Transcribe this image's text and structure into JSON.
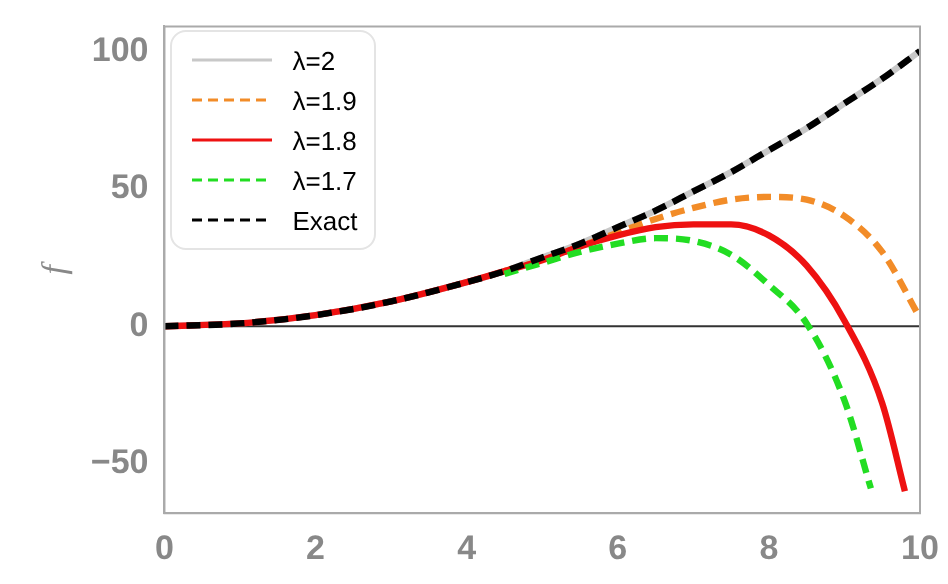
{
  "chart_data": {
    "type": "line",
    "ylabel": "f",
    "xlim": [
      0,
      10
    ],
    "ylim": [
      -68,
      109
    ],
    "xticks": [
      0,
      2,
      4,
      6,
      8,
      10
    ],
    "yticks": [
      -50,
      0,
      50,
      100
    ],
    "grid": false,
    "legend": "top left",
    "marker": "none",
    "ref_lines": [
      {
        "axis": "y",
        "value": 0,
        "color": "#333333"
      }
    ],
    "series": [
      {
        "name": "λ=2",
        "color": "#c8c8c8",
        "line_style": "solid",
        "x": [
          0,
          1,
          2,
          3,
          4,
          4.5,
          5,
          5.5,
          6,
          6.5,
          7,
          7.5,
          8,
          8.5,
          9,
          9.5,
          10
        ],
        "values": [
          0,
          1,
          4,
          9,
          16,
          20,
          25,
          30,
          36,
          42,
          49,
          56,
          64,
          72,
          81,
          90,
          100
        ]
      },
      {
        "name": "λ=1.9",
        "color": "#f28c28",
        "line_style": "dashed",
        "x": [
          4.5,
          5,
          5.5,
          6,
          6.5,
          7,
          7.5,
          8,
          8.5,
          9,
          9.5,
          10
        ],
        "values": [
          20,
          24,
          29,
          34,
          39,
          43,
          46,
          47,
          46,
          40,
          27,
          3
        ]
      },
      {
        "name": "λ=1.8",
        "color": "#ee1111",
        "line_style": "solid",
        "x": [
          0,
          1,
          2,
          3,
          4,
          4.5,
          5,
          5.5,
          6,
          6.5,
          7,
          7.5,
          8,
          8.5,
          9,
          9.5,
          9.8
        ],
        "values": [
          0,
          1,
          4,
          9,
          16,
          20,
          24,
          29,
          33,
          36,
          37,
          37,
          33,
          22,
          2,
          -28,
          -60
        ]
      },
      {
        "name": "λ=1.7",
        "color": "#22dd22",
        "line_style": "dashed",
        "x": [
          4.5,
          5,
          5.5,
          6,
          6.5,
          7,
          7.5,
          8,
          8.5,
          9,
          9.35
        ],
        "values": [
          19,
          23,
          27,
          30,
          32,
          31,
          26,
          15,
          1,
          -27,
          -59
        ]
      },
      {
        "name": "Exact",
        "color": "#000000",
        "line_style": "dashed",
        "x": [
          0,
          1,
          2,
          3,
          4,
          4.5,
          5,
          5.5,
          6,
          6.5,
          7,
          7.5,
          8,
          8.5,
          9,
          9.5,
          10
        ],
        "values": [
          0,
          1,
          4,
          9,
          16,
          20,
          25,
          30,
          36,
          42,
          49,
          56,
          64,
          72,
          81,
          90,
          100
        ]
      }
    ]
  }
}
